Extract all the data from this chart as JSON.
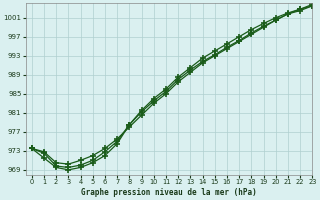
{
  "title": "Graphe pression niveau de la mer (hPa)",
  "bg_color": "#daf0f0",
  "grid_color": "#b0d0d0",
  "line_color": "#1a5c1a",
  "xlim": [
    -0.5,
    23
  ],
  "ylim": [
    968,
    1004
  ],
  "yticks": [
    969,
    973,
    977,
    981,
    985,
    989,
    993,
    997,
    1001
  ],
  "xticks": [
    0,
    1,
    2,
    3,
    4,
    5,
    6,
    7,
    8,
    9,
    10,
    11,
    12,
    13,
    14,
    15,
    16,
    17,
    18,
    19,
    20,
    21,
    22,
    23
  ],
  "series1": [
    973.5,
    972.8,
    970.5,
    970.2,
    971.0,
    972.0,
    973.5,
    975.5,
    978.0,
    980.5,
    983.0,
    985.0,
    987.5,
    989.5,
    991.5,
    993.0,
    994.5,
    996.0,
    997.5,
    999.0,
    1000.5,
    1001.8,
    1002.5,
    1003.5
  ],
  "series2": [
    973.5,
    972.5,
    969.8,
    969.5,
    970.0,
    971.0,
    972.8,
    975.0,
    978.5,
    981.2,
    983.5,
    985.5,
    988.0,
    990.0,
    991.8,
    993.2,
    994.8,
    996.2,
    997.8,
    999.2,
    1000.5,
    1001.8,
    1002.8,
    1003.8
  ],
  "series3": [
    973.5,
    971.5,
    969.5,
    969.0,
    969.5,
    970.5,
    972.0,
    974.5,
    978.5,
    981.5,
    984.0,
    986.0,
    988.5,
    990.5,
    992.5,
    994.0,
    995.5,
    997.0,
    998.5,
    999.8,
    1001.0,
    1002.0,
    1002.8,
    1003.5
  ]
}
